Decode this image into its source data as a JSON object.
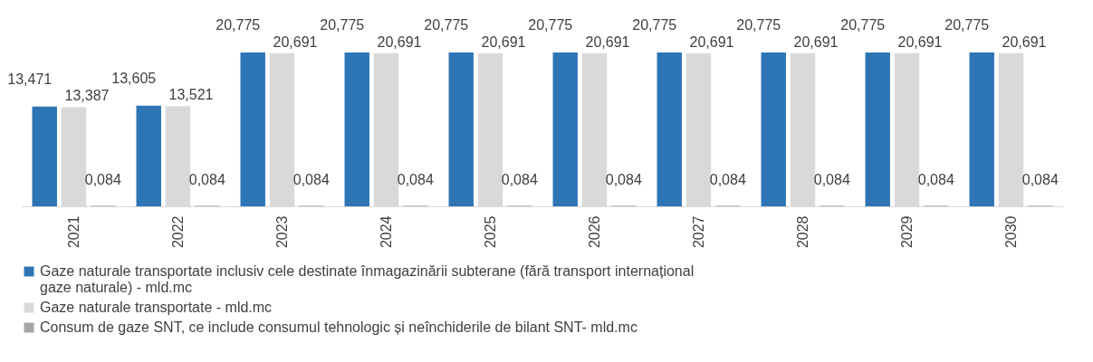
{
  "chart_data": {
    "type": "bar",
    "categories": [
      "2021",
      "2022",
      "2023",
      "2024",
      "2025",
      "2026",
      "2027",
      "2028",
      "2029",
      "2030"
    ],
    "series": [
      {
        "name": "Gaze naturale transportate inclusiv cele destinate înmagazinării subterane (fără transport internațional gaze naturale) - mld.mc",
        "color": "#2e75b6",
        "values": [
          13.471,
          13.605,
          20.775,
          20.775,
          20.775,
          20.775,
          20.775,
          20.775,
          20.775,
          20.775
        ],
        "value_labels": [
          "13,471",
          "13,605",
          "20,775",
          "20,775",
          "20,775",
          "20,775",
          "20,775",
          "20,775",
          "20,775",
          "20,775"
        ]
      },
      {
        "name": "Gaze naturale transportate - mld.mc",
        "color": "#d9d9d9",
        "values": [
          13.387,
          13.521,
          20.691,
          20.691,
          20.691,
          20.691,
          20.691,
          20.691,
          20.691,
          20.691
        ],
        "value_labels": [
          "13,387",
          "13,521",
          "20,691",
          "20,691",
          "20,691",
          "20,691",
          "20,691",
          "20,691",
          "20,691",
          "20,691"
        ]
      },
      {
        "name": "Consum de gaze SNT, ce include consumul tehnologic și neînchiderile de bilant SNT- mld.mc",
        "color": "#a5a5a5",
        "values": [
          0.084,
          0.084,
          0.084,
          0.084,
          0.084,
          0.084,
          0.084,
          0.084,
          0.084,
          0.084
        ],
        "value_labels": [
          "0,084",
          "0,084",
          "0,084",
          "0,084",
          "0,084",
          "0,084",
          "0,084",
          "0,084",
          "0,084",
          "0,084"
        ]
      }
    ],
    "legend": "bottom"
  }
}
